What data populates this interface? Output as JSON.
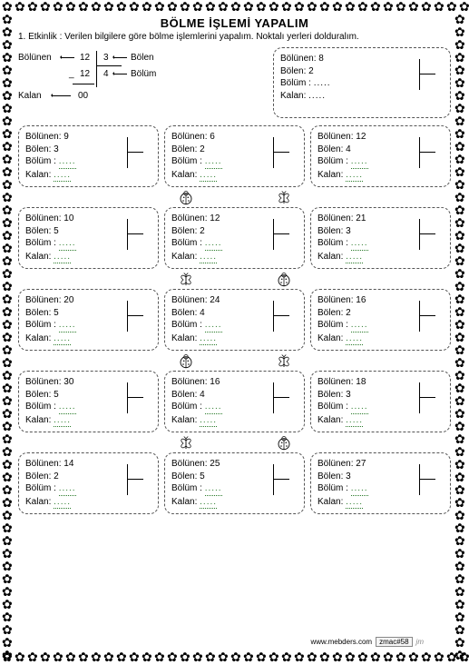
{
  "title": "BÖLME  İŞLEMİ YAPALIM",
  "instruction": "1. Etkinlik : Verilen bilgilere göre bölme işlemlerini yapalım. Noktalı yerleri dolduralım.",
  "example": {
    "bolunen_label": "Bölünen",
    "bolen_label": "Bölen",
    "bolum_label": "Bölüm",
    "kalan_label": "Kalan",
    "bolunen": "12",
    "sub": "12",
    "bolen": "3",
    "bolum": "4",
    "kalan": "00"
  },
  "labels": {
    "bolunen": "Bölünen:",
    "bolen": "Bölen:",
    "bolum": "Bölüm :",
    "kalan": "Kalan:"
  },
  "dots": ".....",
  "topbox": {
    "bolunen": "8",
    "bolen": "2"
  },
  "grid": [
    [
      {
        "bolunen": "9",
        "bolen": "3"
      },
      {
        "bolunen": "6",
        "bolen": "2"
      },
      {
        "bolunen": "12",
        "bolen": "4"
      }
    ],
    [
      {
        "bolunen": "10",
        "bolen": "5"
      },
      {
        "bolunen": "12",
        "bolen": "2"
      },
      {
        "bolunen": "21",
        "bolen": "3"
      }
    ],
    [
      {
        "bolunen": "20",
        "bolen": "5"
      },
      {
        "bolunen": "24",
        "bolen": "4"
      },
      {
        "bolunen": "16",
        "bolen": "2"
      }
    ],
    [
      {
        "bolunen": "30",
        "bolen": "5"
      },
      {
        "bolunen": "16",
        "bolen": "4"
      },
      {
        "bolunen": "18",
        "bolen": "3"
      }
    ],
    [
      {
        "bolunen": "14",
        "bolen": "2"
      },
      {
        "bolunen": "25",
        "bolen": "5"
      },
      {
        "bolunen": "27",
        "bolen": "3"
      }
    ]
  ],
  "separators": [
    [
      "ladybug",
      "butterfly"
    ],
    [
      "butterfly",
      "ladybug"
    ],
    [
      "ladybug",
      "butterfly"
    ],
    [
      "butterfly",
      "ladybug"
    ]
  ],
  "footer": {
    "site": "www.mebders.com",
    "tag": "zmac#58"
  },
  "colors": {
    "text": "#000000",
    "dash": "#555555",
    "green": "#2a7a2a",
    "bg": "#ffffff"
  }
}
